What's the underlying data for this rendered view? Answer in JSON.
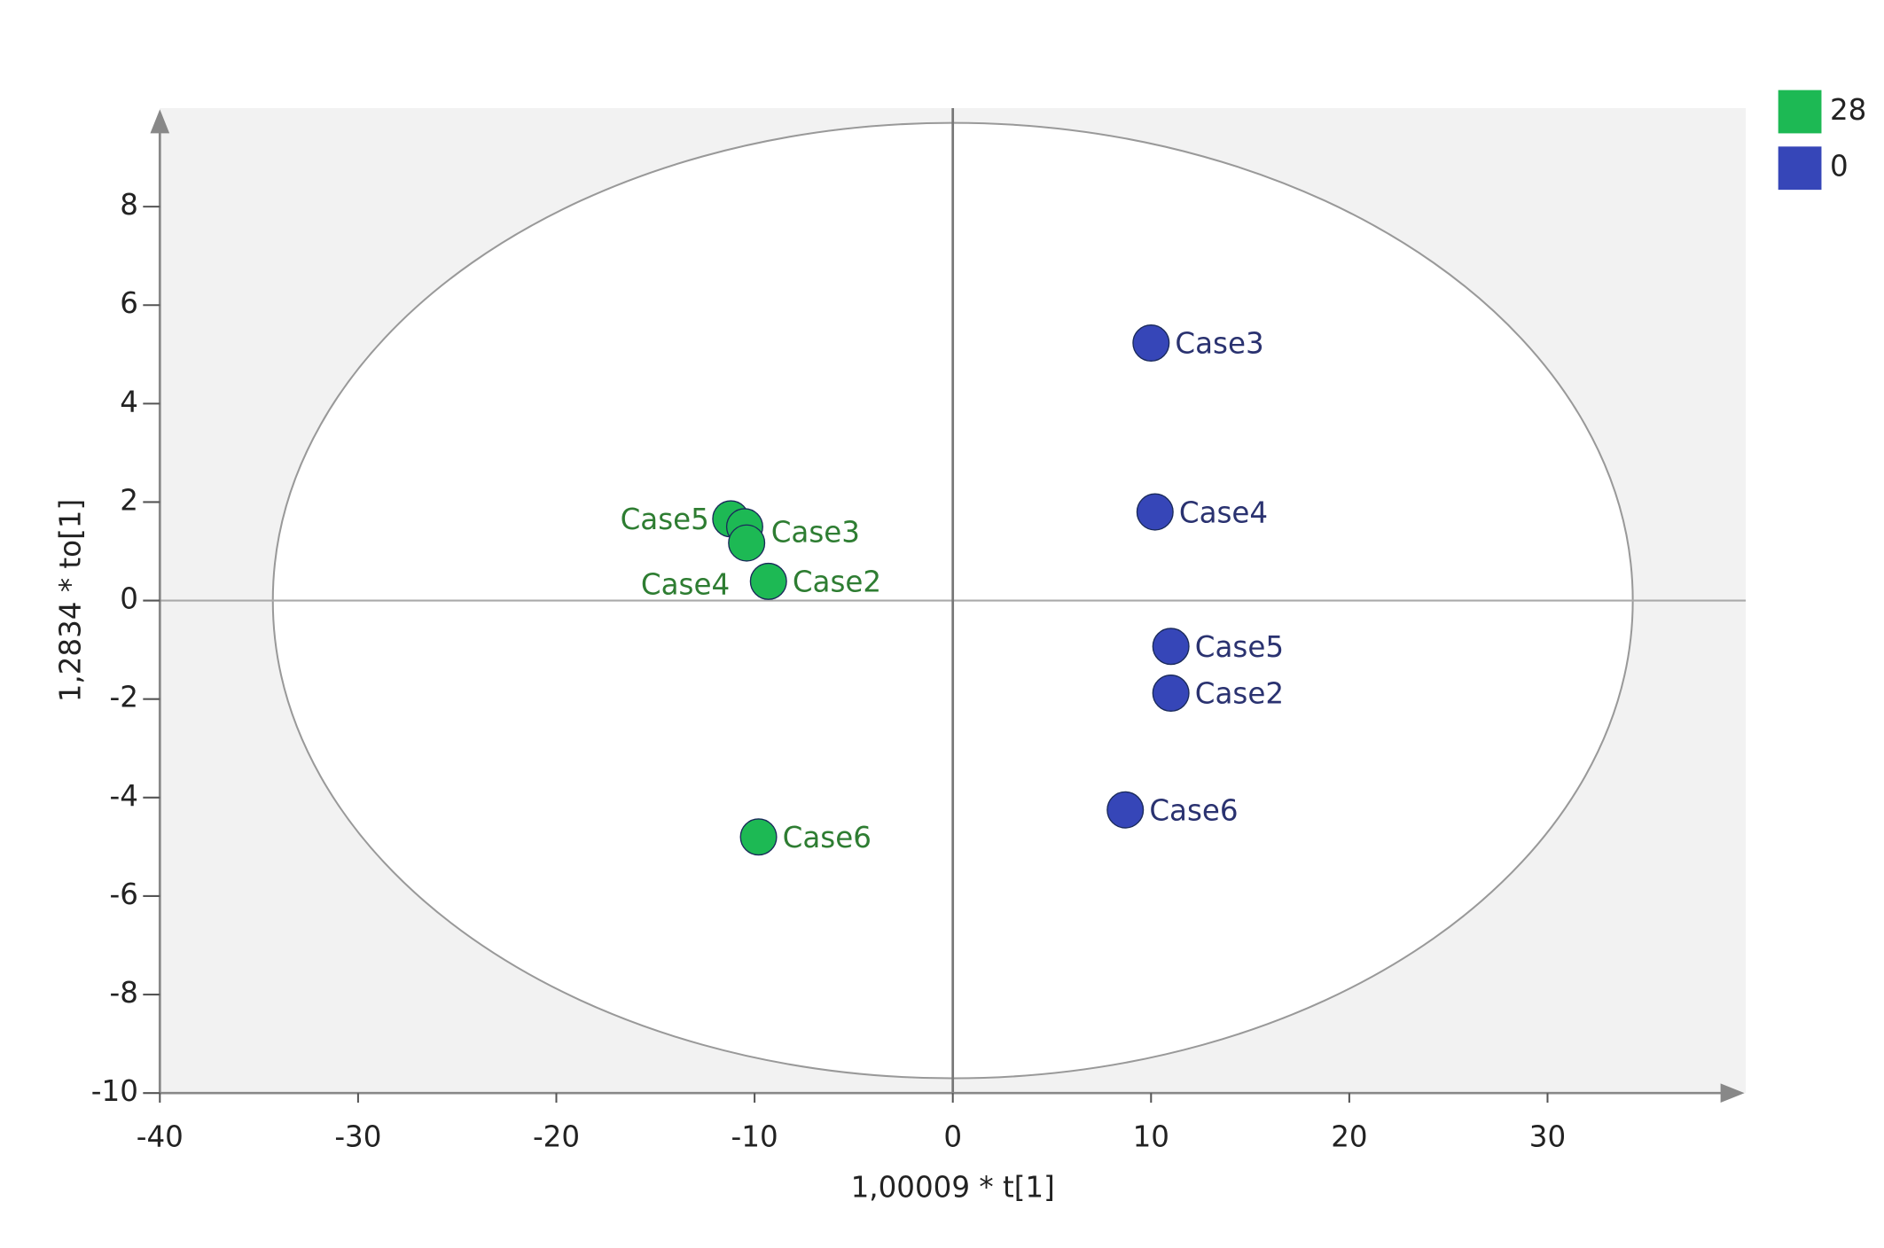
{
  "chart_data": {
    "type": "scatter",
    "xlabel": "1,00009 * t[1]",
    "ylabel": "1,2834 * to[1]",
    "xlim": [
      -40,
      40
    ],
    "xticks": [
      -40,
      -30,
      -20,
      -10,
      0,
      10,
      20,
      30
    ],
    "ylim": [
      -10,
      10
    ],
    "yticks": [
      -10,
      -8,
      -6,
      -4,
      -2,
      0,
      2,
      4,
      6,
      8
    ],
    "ellipse_radii": [
      34.3,
      9.7
    ],
    "legend": "upper right",
    "series": [
      {
        "name": "28",
        "color": "#1db954",
        "labels": [
          "Case5",
          "Case3",
          "Case4",
          "Case2",
          "Case6"
        ],
        "x": [
          -11.2,
          -10.5,
          -10.4,
          -9.3,
          -9.8
        ],
        "values": [
          1.66,
          1.5,
          1.17,
          0.39,
          -4.8
        ]
      },
      {
        "name": "0",
        "color": "#3646b8",
        "labels": [
          "Case3",
          "Case4",
          "Case5",
          "Case2",
          "Case6"
        ],
        "x": [
          10.0,
          10.2,
          11.0,
          11.0,
          8.7
        ],
        "values": [
          5.23,
          1.8,
          -0.93,
          -1.88,
          -4.25
        ]
      }
    ]
  }
}
